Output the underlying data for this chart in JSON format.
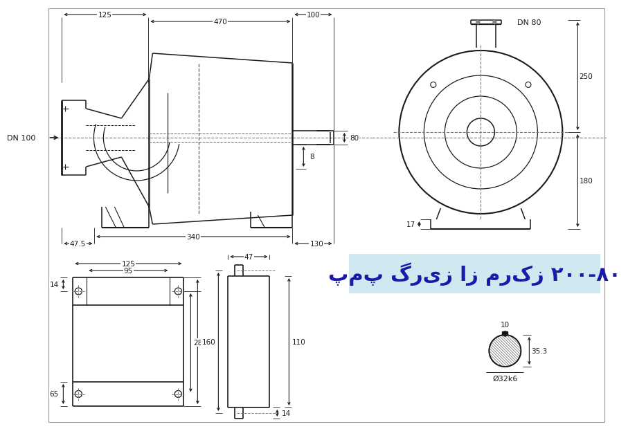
{
  "title": "پمپ گریز از مرکز ۲۰۰-۸۰",
  "title_bg": "#d0e8f0",
  "title_text_color": "#1a1aaa",
  "bg_color": "#ffffff",
  "line_color": "#1a1a1a",
  "dim_color": "#1a1a1a"
}
